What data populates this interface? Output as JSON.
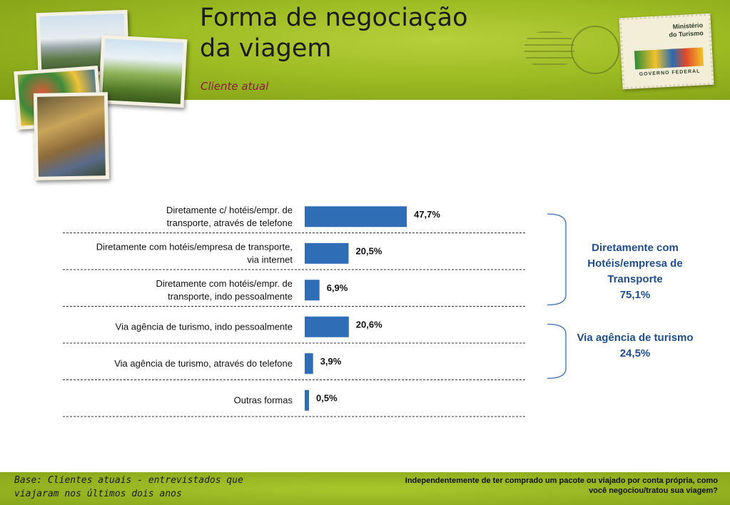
{
  "header": {
    "title_line1": "Forma de negociação",
    "title_line2": "da viagem",
    "subtitle": "Cliente atual"
  },
  "stamp": {
    "ministry_line1": "Ministério",
    "ministry_line2": "do Turismo",
    "government": "GOVERNO FEDERAL"
  },
  "colors": {
    "bar": "#2f6db7",
    "group_text": "#1f4e8f",
    "header_green": "#9dbb22",
    "subtitle": "#8a1c3a"
  },
  "chart_data": {
    "type": "bar",
    "orientation": "horizontal",
    "title": "",
    "xlabel": "",
    "ylabel": "",
    "xlim": [
      0,
      100
    ],
    "grid": false,
    "categories": [
      [
        "Diretamente c/ hotéis/empr. de",
        "transporte, através de telefone"
      ],
      [
        "Diretamente com hotéis/empresa de transporte,",
        "via internet"
      ],
      [
        "Diretamente com hotéis/empr. de",
        "transporte, indo pessoalmente"
      ],
      [
        "Via agência de turismo, indo pessoalmente"
      ],
      [
        "Via agência de turismo, através do telefone"
      ],
      [
        "Outras formas"
      ]
    ],
    "values": [
      47.7,
      20.5,
      6.9,
      20.6,
      3.9,
      0.5
    ],
    "value_labels": [
      "47,7%",
      "20,5%",
      "6,9%",
      "20,6%",
      "3,9%",
      "0,5%"
    ],
    "groups": [
      {
        "lines": [
          "Diretamente com",
          "Hotéis/empresa de",
          "Transporte",
          "75,1%"
        ],
        "members": [
          0,
          1,
          2
        ]
      },
      {
        "lines": [
          "Via agência de turismo",
          "24,5%"
        ],
        "members": [
          3,
          4
        ]
      }
    ]
  },
  "footer": {
    "base_line1": "Base: Clientes atuais - entrevistados que",
    "base_line2": "viajaram nos últimos dois anos",
    "question_line1": "Independentemente de ter comprado um pacote ou viajado por conta própria, como",
    "question_line2": "você negociou/tratou sua viagem?"
  }
}
